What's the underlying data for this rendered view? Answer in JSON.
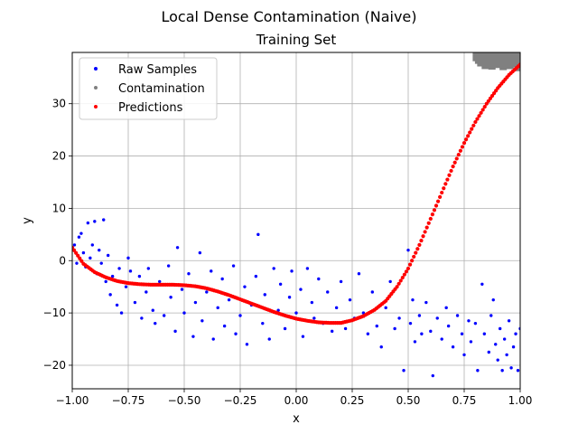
{
  "figure": {
    "suptitle": "Local Dense Contamination (Naive)"
  },
  "chart_data": {
    "type": "scatter",
    "title": "Training Set",
    "xlabel": "x",
    "ylabel": "y",
    "xlim": [
      -1.0,
      1.0
    ],
    "ylim": [
      -24.5,
      39.8
    ],
    "xticks": [
      -1.0,
      -0.75,
      -0.5,
      -0.25,
      0.0,
      0.25,
      0.5,
      0.75,
      1.0
    ],
    "xtick_labels": [
      "−1.00",
      "−0.75",
      "−0.50",
      "−0.25",
      "0.00",
      "0.25",
      "0.50",
      "0.75",
      "1.00"
    ],
    "yticks": [
      -20,
      -10,
      0,
      10,
      20,
      30
    ],
    "ytick_labels": [
      "−20",
      "−10",
      "0",
      "10",
      "20",
      "30"
    ],
    "grid": true,
    "legend_position": "upper left",
    "series": [
      {
        "name": "Raw Samples",
        "color": "#0000ff",
        "points": [
          [
            -0.99,
            3.0
          ],
          [
            -0.98,
            -0.5
          ],
          [
            -0.97,
            4.5
          ],
          [
            -0.96,
            5.2
          ],
          [
            -0.95,
            1.5
          ],
          [
            -0.94,
            -1.2
          ],
          [
            -0.93,
            7.2
          ],
          [
            -0.92,
            0.5
          ],
          [
            -0.91,
            3.0
          ],
          [
            -0.9,
            7.5
          ],
          [
            -0.89,
            -2.5
          ],
          [
            -0.88,
            2.0
          ],
          [
            -0.87,
            -0.5
          ],
          [
            -0.86,
            7.8
          ],
          [
            -0.85,
            -4.0
          ],
          [
            -0.84,
            1.0
          ],
          [
            -0.83,
            -6.5
          ],
          [
            -0.82,
            -3.0
          ],
          [
            -0.8,
            -8.5
          ],
          [
            -0.79,
            -1.5
          ],
          [
            -0.78,
            -10.0
          ],
          [
            -0.76,
            -5.0
          ],
          [
            -0.75,
            0.5
          ],
          [
            -0.74,
            -2.0
          ],
          [
            -0.72,
            -8.0
          ],
          [
            -0.7,
            -3.0
          ],
          [
            -0.69,
            -11.0
          ],
          [
            -0.67,
            -6.0
          ],
          [
            -0.66,
            -1.5
          ],
          [
            -0.64,
            -9.5
          ],
          [
            -0.63,
            -12.0
          ],
          [
            -0.61,
            -4.0
          ],
          [
            -0.59,
            -10.5
          ],
          [
            -0.57,
            -1.0
          ],
          [
            -0.56,
            -7.0
          ],
          [
            -0.54,
            -13.5
          ],
          [
            -0.53,
            2.5
          ],
          [
            -0.51,
            -5.5
          ],
          [
            -0.5,
            -10.0
          ],
          [
            -0.48,
            -2.5
          ],
          [
            -0.46,
            -14.5
          ],
          [
            -0.45,
            -8.0
          ],
          [
            -0.43,
            1.5
          ],
          [
            -0.42,
            -11.5
          ],
          [
            -0.4,
            -6.0
          ],
          [
            -0.38,
            -2.0
          ],
          [
            -0.37,
            -15.0
          ],
          [
            -0.35,
            -9.0
          ],
          [
            -0.33,
            -3.5
          ],
          [
            -0.32,
            -12.5
          ],
          [
            -0.3,
            -7.5
          ],
          [
            -0.28,
            -1.0
          ],
          [
            -0.27,
            -14.0
          ],
          [
            -0.25,
            -10.5
          ],
          [
            -0.23,
            -5.0
          ],
          [
            -0.22,
            -16.0
          ],
          [
            -0.2,
            -8.5
          ],
          [
            -0.18,
            -3.0
          ],
          [
            -0.17,
            5.0
          ],
          [
            -0.15,
            -12.0
          ],
          [
            -0.14,
            -6.5
          ],
          [
            -0.12,
            -15.0
          ],
          [
            -0.1,
            -1.5
          ],
          [
            -0.08,
            -9.5
          ],
          [
            -0.07,
            -4.5
          ],
          [
            -0.05,
            -13.0
          ],
          [
            -0.03,
            -7.0
          ],
          [
            -0.02,
            -2.0
          ],
          [
            0.0,
            -10.0
          ],
          [
            0.02,
            -5.5
          ],
          [
            0.03,
            -14.5
          ],
          [
            0.05,
            -1.5
          ],
          [
            0.07,
            -8.0
          ],
          [
            0.08,
            -11.0
          ],
          [
            0.1,
            -3.5
          ],
          [
            0.12,
            -12.0
          ],
          [
            0.14,
            -6.0
          ],
          [
            0.16,
            -13.5
          ],
          [
            0.18,
            -9.0
          ],
          [
            0.2,
            -4.0
          ],
          [
            0.22,
            -13.0
          ],
          [
            0.24,
            -7.5
          ],
          [
            0.26,
            -11.0
          ],
          [
            0.28,
            -2.5
          ],
          [
            0.3,
            -10.0
          ],
          [
            0.32,
            -14.0
          ],
          [
            0.34,
            -6.0
          ],
          [
            0.36,
            -12.5
          ],
          [
            0.38,
            -16.5
          ],
          [
            0.4,
            -9.0
          ],
          [
            0.42,
            -4.0
          ],
          [
            0.44,
            -13.0
          ],
          [
            0.46,
            -11.0
          ],
          [
            0.48,
            -21.0
          ],
          [
            0.5,
            2.0
          ],
          [
            0.51,
            -12.0
          ],
          [
            0.52,
            -7.5
          ],
          [
            0.53,
            -15.5
          ],
          [
            0.55,
            -10.5
          ],
          [
            0.56,
            -14.0
          ],
          [
            0.58,
            -8.0
          ],
          [
            0.6,
            -13.5
          ],
          [
            0.61,
            -22.0
          ],
          [
            0.63,
            -11.0
          ],
          [
            0.65,
            -15.0
          ],
          [
            0.67,
            -9.0
          ],
          [
            0.68,
            -12.5
          ],
          [
            0.7,
            -16.5
          ],
          [
            0.72,
            -10.5
          ],
          [
            0.74,
            -14.0
          ],
          [
            0.75,
            -18.0
          ],
          [
            0.77,
            -11.5
          ],
          [
            0.78,
            -15.5
          ],
          [
            0.8,
            -12.0
          ],
          [
            0.81,
            -21.0
          ],
          [
            0.83,
            -4.5
          ],
          [
            0.84,
            -14.0
          ],
          [
            0.86,
            -17.5
          ],
          [
            0.87,
            -10.5
          ],
          [
            0.88,
            -7.5
          ],
          [
            0.89,
            -16.0
          ],
          [
            0.9,
            -19.0
          ],
          [
            0.91,
            -13.0
          ],
          [
            0.92,
            -21.0
          ],
          [
            0.93,
            -15.0
          ],
          [
            0.94,
            -18.0
          ],
          [
            0.95,
            -11.5
          ],
          [
            0.96,
            -20.5
          ],
          [
            0.97,
            -16.5
          ],
          [
            0.98,
            -14.0
          ],
          [
            0.99,
            -21.0
          ],
          [
            1.0,
            -13.0
          ]
        ]
      },
      {
        "name": "Contamination",
        "color": "#808080",
        "points": [
          [
            0.8,
            39.5
          ],
          [
            0.81,
            39.0
          ],
          [
            0.82,
            38.5
          ],
          [
            0.83,
            39.3
          ],
          [
            0.84,
            38.0
          ],
          [
            0.85,
            39.0
          ],
          [
            0.86,
            38.6
          ],
          [
            0.87,
            37.9
          ],
          [
            0.88,
            39.4
          ],
          [
            0.89,
            38.2
          ],
          [
            0.9,
            39.1
          ],
          [
            0.91,
            38.4
          ],
          [
            0.92,
            37.8
          ],
          [
            0.93,
            39.2
          ],
          [
            0.94,
            38.7
          ],
          [
            0.95,
            38.0
          ],
          [
            0.96,
            39.5
          ],
          [
            0.97,
            38.3
          ],
          [
            0.98,
            39.0
          ],
          [
            0.99,
            37.6
          ],
          [
            1.0,
            38.8
          ]
        ]
      },
      {
        "name": "Predictions",
        "color": "#ff0000",
        "points": [
          [
            -1.0,
            2.5
          ],
          [
            -0.95,
            -0.6
          ],
          [
            -0.9,
            -2.2
          ],
          [
            -0.85,
            -3.2
          ],
          [
            -0.8,
            -3.9
          ],
          [
            -0.75,
            -4.3
          ],
          [
            -0.7,
            -4.5
          ],
          [
            -0.65,
            -4.6
          ],
          [
            -0.6,
            -4.6
          ],
          [
            -0.55,
            -4.6
          ],
          [
            -0.5,
            -4.7
          ],
          [
            -0.45,
            -4.9
          ],
          [
            -0.4,
            -5.3
          ],
          [
            -0.35,
            -5.9
          ],
          [
            -0.3,
            -6.6
          ],
          [
            -0.25,
            -7.4
          ],
          [
            -0.2,
            -8.2
          ],
          [
            -0.15,
            -9.0
          ],
          [
            -0.1,
            -9.8
          ],
          [
            -0.05,
            -10.5
          ],
          [
            0.0,
            -11.1
          ],
          [
            0.05,
            -11.5
          ],
          [
            0.1,
            -11.8
          ],
          [
            0.15,
            -11.9
          ],
          [
            0.2,
            -11.9
          ],
          [
            0.25,
            -11.4
          ],
          [
            0.3,
            -10.6
          ],
          [
            0.35,
            -9.4
          ],
          [
            0.4,
            -7.7
          ],
          [
            0.45,
            -5.0
          ],
          [
            0.5,
            -1.5
          ],
          [
            0.55,
            3.0
          ],
          [
            0.6,
            8.0
          ],
          [
            0.65,
            13.0
          ],
          [
            0.7,
            18.0
          ],
          [
            0.75,
            22.5
          ],
          [
            0.8,
            26.5
          ],
          [
            0.85,
            30.0
          ],
          [
            0.9,
            33.0
          ],
          [
            0.95,
            35.5
          ],
          [
            1.0,
            37.5
          ]
        ]
      }
    ]
  }
}
